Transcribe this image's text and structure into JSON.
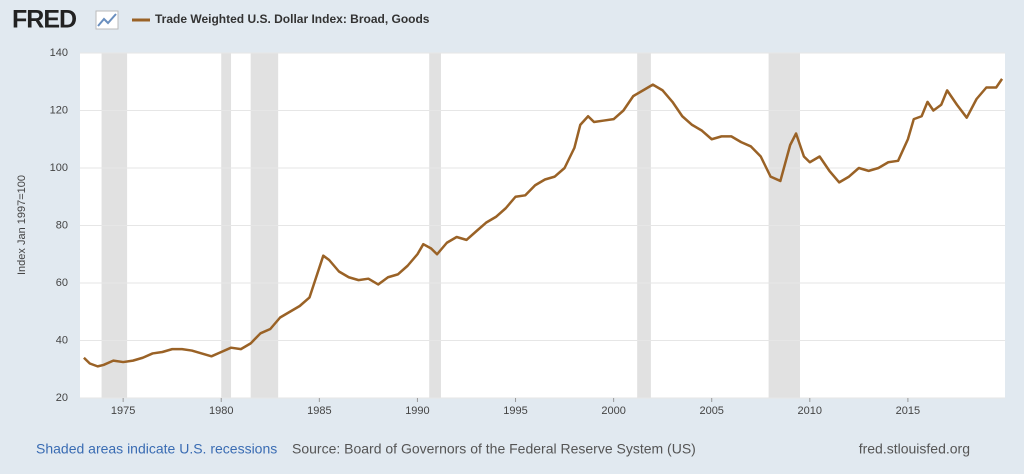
{
  "logo": "FRED",
  "chart_data": {
    "type": "line",
    "title": "Trade Weighted U.S. Dollar Index: Broad, Goods",
    "y_label": "Index Jan 1997=100",
    "x": [
      1973.0,
      1973.3,
      1973.7,
      1974.0,
      1974.5,
      1975.0,
      1975.5,
      1976.0,
      1976.5,
      1977.0,
      1977.5,
      1978.0,
      1978.5,
      1979.0,
      1979.5,
      1980.0,
      1980.5,
      1981.0,
      1981.5,
      1982.0,
      1982.5,
      1983.0,
      1983.5,
      1984.0,
      1984.5,
      1985.2,
      1985.5,
      1986.0,
      1986.5,
      1987.0,
      1987.5,
      1988.0,
      1988.5,
      1989.0,
      1989.5,
      1990.0,
      1990.3,
      1990.7,
      1991.0,
      1991.5,
      1992.0,
      1992.5,
      1993.0,
      1993.5,
      1994.0,
      1994.5,
      1995.0,
      1995.5,
      1996.0,
      1996.5,
      1997.0,
      1997.5,
      1998.0,
      1998.3,
      1998.7,
      1999.0,
      1999.5,
      2000.0,
      2000.5,
      2001.0,
      2001.5,
      2002.0,
      2002.5,
      2003.0,
      2003.5,
      2004.0,
      2004.5,
      2005.0,
      2005.5,
      2006.0,
      2006.5,
      2007.0,
      2007.5,
      2008.0,
      2008.5,
      2009.0,
      2009.3,
      2009.7,
      2010.0,
      2010.5,
      2011.0,
      2011.5,
      2012.0,
      2012.5,
      2013.0,
      2013.5,
      2014.0,
      2014.5,
      2015.0,
      2015.3,
      2015.7,
      2016.0,
      2016.3,
      2016.7,
      2017.0,
      2017.5,
      2018.0,
      2018.5,
      2019.0,
      2019.5,
      2019.8
    ],
    "series": [
      {
        "name": "Trade Weighted U.S. Dollar Index: Broad, Goods",
        "color": "#9a6226",
        "values": [
          34,
          32,
          31,
          31.5,
          33,
          32.5,
          33,
          34,
          35.5,
          36,
          37,
          37,
          36.5,
          35.5,
          34.5,
          36,
          37.5,
          37,
          39,
          42.5,
          44,
          48,
          50,
          52,
          55,
          69.5,
          68,
          64,
          62,
          61,
          61.5,
          59.5,
          62,
          63,
          66,
          70,
          73.5,
          72,
          70,
          74,
          76,
          75,
          78,
          81,
          83,
          86,
          90,
          90.5,
          94,
          96,
          97,
          100,
          107,
          115,
          118,
          116,
          116.5,
          117,
          120,
          125,
          127,
          129,
          127,
          123,
          118,
          115,
          113,
          110,
          111,
          111,
          109,
          107.5,
          104,
          97,
          95.5,
          108,
          112,
          104,
          102,
          104,
          99,
          95,
          97,
          100,
          99,
          100,
          102,
          102.5,
          110,
          117,
          118,
          123,
          120,
          122,
          127,
          122,
          117.5,
          124,
          128,
          128,
          131
        ]
      }
    ],
    "recessions": [
      [
        1973.9,
        1975.2
      ],
      [
        1980.0,
        1980.5
      ],
      [
        1981.5,
        1982.9
      ],
      [
        1990.6,
        1991.2
      ],
      [
        2001.2,
        2001.9
      ],
      [
        2007.9,
        2009.5
      ]
    ],
    "recession_color": "#e1e1e1",
    "xlim": [
      1972.8,
      2019.95
    ],
    "xticks": [
      1975,
      1980,
      1985,
      1990,
      1995,
      2000,
      2005,
      2010,
      2015
    ],
    "ylim": [
      20,
      140
    ],
    "yticks": [
      20,
      40,
      60,
      80,
      100,
      120,
      140
    ],
    "grid": true,
    "notes": {
      "recession_link": "Shaded areas indicate U.S. recessions",
      "source": "Source: Board of Governors of the Federal Reserve System (US)",
      "site": "fred.stlouisfed.org"
    }
  }
}
